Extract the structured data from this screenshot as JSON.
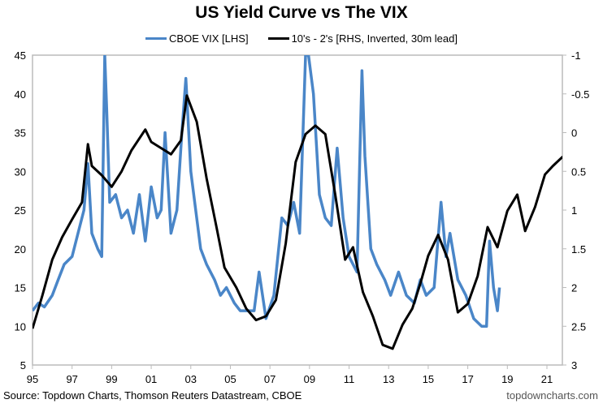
{
  "chart_data": {
    "type": "line",
    "title": "US Yield Curve vs The VIX",
    "source": "Source: Topdown Charts, Thomson Reuters Datastream, CBOE",
    "brand": "topdowncharts.com",
    "legend_placement": "top",
    "grid": false,
    "xlim": [
      1995,
      2021.8
    ],
    "x_ticks": [
      "95",
      "97",
      "99",
      "01",
      "03",
      "05",
      "07",
      "09",
      "11",
      "13",
      "15",
      "17",
      "19",
      "21"
    ],
    "y_left": {
      "lim": [
        5,
        45
      ],
      "ticks": [
        "5",
        "10",
        "15",
        "20",
        "25",
        "30",
        "35",
        "40",
        "45"
      ]
    },
    "y_right": {
      "lim": [
        -1,
        3
      ],
      "inverted": true,
      "ticks": [
        "-1",
        "-0.5",
        "0",
        "0.5",
        "1",
        "1.5",
        "2",
        "2.5",
        "3"
      ]
    },
    "series": [
      {
        "name": "CBOE VIX [LHS]",
        "axis": "left",
        "color": "#4a86c8",
        "x": [
          1995.0,
          1995.3,
          1995.6,
          1996.0,
          1996.3,
          1996.6,
          1997.0,
          1997.3,
          1997.6,
          1997.8,
          1998.0,
          1998.3,
          1998.5,
          1998.65,
          1998.75,
          1998.9,
          1999.2,
          1999.5,
          1999.8,
          2000.1,
          2000.4,
          2000.7,
          2001.0,
          2001.3,
          2001.5,
          2001.7,
          2002.0,
          2002.3,
          2002.55,
          2002.75,
          2003.0,
          2003.2,
          2003.5,
          2003.8,
          2004.2,
          2004.5,
          2004.8,
          2005.2,
          2005.5,
          2005.8,
          2006.2,
          2006.45,
          2006.8,
          2007.2,
          2007.6,
          2007.9,
          2008.2,
          2008.5,
          2008.8,
          2008.95,
          2009.2,
          2009.5,
          2009.8,
          2010.1,
          2010.4,
          2010.7,
          2011.0,
          2011.4,
          2011.65,
          2011.8,
          2012.1,
          2012.4,
          2012.8,
          2013.1,
          2013.5,
          2013.9,
          2014.3,
          2014.6,
          2014.9,
          2015.3,
          2015.65,
          2015.9,
          2016.1,
          2016.5,
          2016.9,
          2017.3,
          2017.7,
          2017.95,
          2018.1,
          2018.3,
          2018.5,
          2018.6
        ],
        "values": [
          12,
          13,
          12.5,
          14,
          16,
          18,
          19,
          22,
          25,
          31,
          22,
          20,
          19,
          45,
          38,
          26,
          27,
          24,
          25,
          22,
          27,
          21,
          28,
          24,
          25,
          35,
          22,
          25,
          35,
          42,
          30,
          26,
          20,
          18,
          16,
          14,
          15,
          13,
          12,
          12,
          12,
          17,
          11,
          14,
          24,
          23,
          26,
          22,
          45,
          45,
          40,
          27,
          24,
          23,
          33,
          24,
          19,
          17,
          43,
          32,
          20,
          18,
          16,
          14,
          17,
          14,
          13,
          16,
          14,
          15,
          26,
          19,
          22,
          16,
          14,
          11,
          10,
          10,
          21,
          15,
          12,
          15
        ]
      },
      {
        "name": "10's - 2's [RHS, Inverted, 30m lead]",
        "axis": "right",
        "color": "#000000",
        "x": [
          1995.0,
          1995.5,
          1996.0,
          1996.5,
          1997.0,
          1997.5,
          1997.8,
          1998.0,
          1998.5,
          1999.0,
          1999.5,
          2000.0,
          2000.7,
          2001.0,
          2001.5,
          2002.0,
          2002.5,
          2002.8,
          2003.3,
          2003.8,
          2004.3,
          2004.7,
          2005.3,
          2005.8,
          2006.3,
          2006.8,
          2007.3,
          2007.8,
          2008.3,
          2008.8,
          2009.3,
          2009.8,
          2010.3,
          2010.8,
          2011.2,
          2011.7,
          2012.2,
          2012.7,
          2013.2,
          2013.7,
          2014.2,
          2014.6,
          2015.0,
          2015.5,
          2016.0,
          2016.5,
          2017.0,
          2017.5,
          2018.0,
          2018.5,
          2019.0,
          2019.5,
          2019.9,
          2020.4,
          2020.9,
          2021.3,
          2021.8
        ],
        "values": [
          2.53,
          2.1,
          1.64,
          1.35,
          1.12,
          0.9,
          0.15,
          0.43,
          0.55,
          0.7,
          0.5,
          0.23,
          -0.04,
          0.12,
          0.2,
          0.28,
          0.1,
          -0.48,
          -0.14,
          0.59,
          1.22,
          1.74,
          2.0,
          2.27,
          2.42,
          2.37,
          2.16,
          1.43,
          0.38,
          0.02,
          -0.09,
          0.02,
          0.8,
          1.64,
          1.48,
          2.06,
          2.37,
          2.74,
          2.79,
          2.48,
          2.27,
          1.95,
          1.59,
          1.32,
          1.64,
          2.32,
          2.21,
          1.85,
          1.22,
          1.48,
          1.01,
          0.8,
          1.27,
          0.96,
          0.54,
          0.43,
          0.31
        ]
      }
    ]
  }
}
